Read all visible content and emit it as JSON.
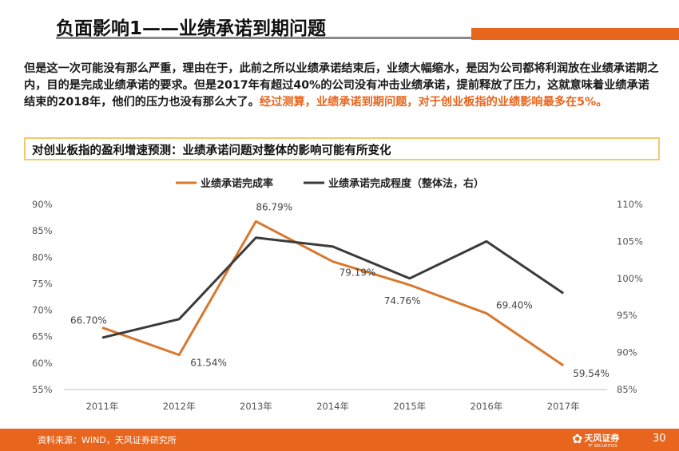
{
  "header": {
    "title": "负面影响1——业绩承诺到期问题"
  },
  "paragraph": {
    "text": "但是这一次可能没有那么严重，理由在于，此前之所以业绩承诺结束后，业绩大幅缩水，是因为公司都将利润放在业绩承诺期之内，目的是完成业绩承诺的要求。但是2017年有超过40%的公司没有冲击业绩承诺，提前释放了压力，这就意味着业绩承诺结束的2018年，他们的压力也没有那么大了。",
    "highlight": "经过测算，业绩承诺到期问题，对于创业板指的业绩影响最多在5%。"
  },
  "subtitle": "对创业板指的盈利增速预测：业绩承诺问题对整体的影响可能有所变化",
  "chart_data": {
    "type": "line",
    "categories": [
      "2011年",
      "2012年",
      "2013年",
      "2014年",
      "2015年",
      "2016年",
      "2017年"
    ],
    "series": [
      {
        "name": "业绩承诺完成率",
        "axis": "left",
        "color": "#d8782e",
        "values": [
          66.7,
          61.54,
          86.79,
          79.19,
          74.76,
          69.4,
          59.54
        ],
        "labels": [
          "66.70%",
          "61.54%",
          "86.79%",
          "79.19%",
          "74.76%",
          "69.40%",
          "59.54%"
        ]
      },
      {
        "name": "业绩承诺完成程度（整体法，右）",
        "axis": "right",
        "color": "#3a3a3a",
        "values": [
          92.0,
          94.5,
          105.5,
          104.3,
          100.0,
          105.0,
          98.0
        ]
      }
    ],
    "y_left": {
      "min": 55,
      "max": 90,
      "ticks": [
        "55%",
        "60%",
        "65%",
        "70%",
        "75%",
        "80%",
        "85%",
        "90%"
      ]
    },
    "y_right": {
      "min": 85,
      "max": 110,
      "ticks": [
        "85%",
        "90%",
        "95%",
        "100%",
        "105%",
        "110%"
      ]
    }
  },
  "footer": {
    "source": "资料来源：WIND，天风证券研究所",
    "logo_text": "天风证券",
    "logo_sub": "TF SECURITIES",
    "page": "30"
  },
  "colors": {
    "accent": "#e8651d",
    "box_border": "#f2c96e"
  }
}
